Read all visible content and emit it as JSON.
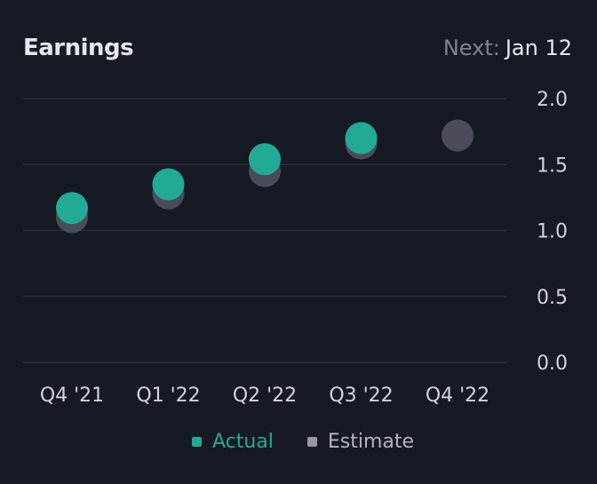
{
  "header": {
    "title": "Earnings",
    "next_label": "Next:",
    "next_date": "Jan 12"
  },
  "colors": {
    "background": "#161a25",
    "actual": "#22ab94",
    "estimate": "#4a4d59",
    "grid": "#2a2e39"
  },
  "chart_data": {
    "type": "scatter",
    "title": "Earnings",
    "categories": [
      "Q4 '21",
      "Q1 '22",
      "Q2 '22",
      "Q3 '22",
      "Q4 '22"
    ],
    "series": [
      {
        "name": "Actual",
        "values": [
          1.17,
          1.35,
          1.54,
          1.7,
          null
        ]
      },
      {
        "name": "Estimate",
        "values": [
          1.1,
          1.28,
          1.45,
          1.66,
          1.72
        ]
      }
    ],
    "y_ticks": [
      "2.0",
      "1.5",
      "1.0",
      "0.5",
      "0.0"
    ],
    "ylim": [
      0,
      2.0
    ],
    "y_axis_side": "right",
    "grid": true,
    "legend_position": "bottom"
  }
}
